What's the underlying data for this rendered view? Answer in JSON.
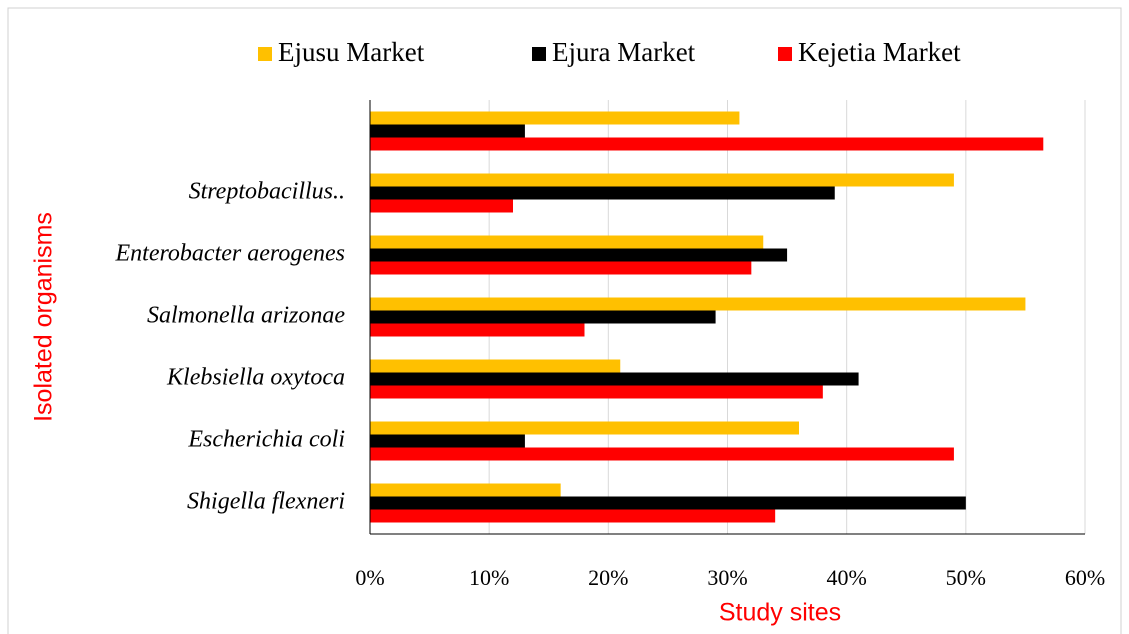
{
  "chart_data": {
    "type": "bar",
    "orientation": "horizontal",
    "x_label": "Study sites",
    "y_label": "Isolated organisms",
    "categories": [
      null,
      "Streptobacillus..",
      "Enterobacter aerogenes",
      "Salmonella arizonae",
      "Klebsiella oxytoca",
      "Escherichia coli",
      "Shigella flexneri"
    ],
    "series": [
      {
        "name": "Ejusu Market",
        "color": "#ffc000",
        "values": [
          31,
          49,
          33,
          55,
          21,
          36,
          16
        ]
      },
      {
        "name": "Ejura Market",
        "color": "#000000",
        "values": [
          13,
          39,
          35,
          29,
          41,
          13,
          50
        ]
      },
      {
        "name": "Kejetia Market",
        "color": "#ff0000",
        "values": [
          56.5,
          12,
          32,
          18,
          38,
          49,
          34
        ]
      }
    ],
    "xlim": [
      0,
      60
    ],
    "xticks": [
      {
        "value": 0,
        "label": "0%"
      },
      {
        "value": 10,
        "label": "10%"
      },
      {
        "value": 20,
        "label": "20%"
      },
      {
        "value": 30,
        "label": "30%"
      },
      {
        "value": 40,
        "label": "40%"
      },
      {
        "value": 50,
        "label": "50%"
      },
      {
        "value": 60,
        "label": "60%"
      }
    ],
    "grid": true,
    "legend": "top"
  }
}
